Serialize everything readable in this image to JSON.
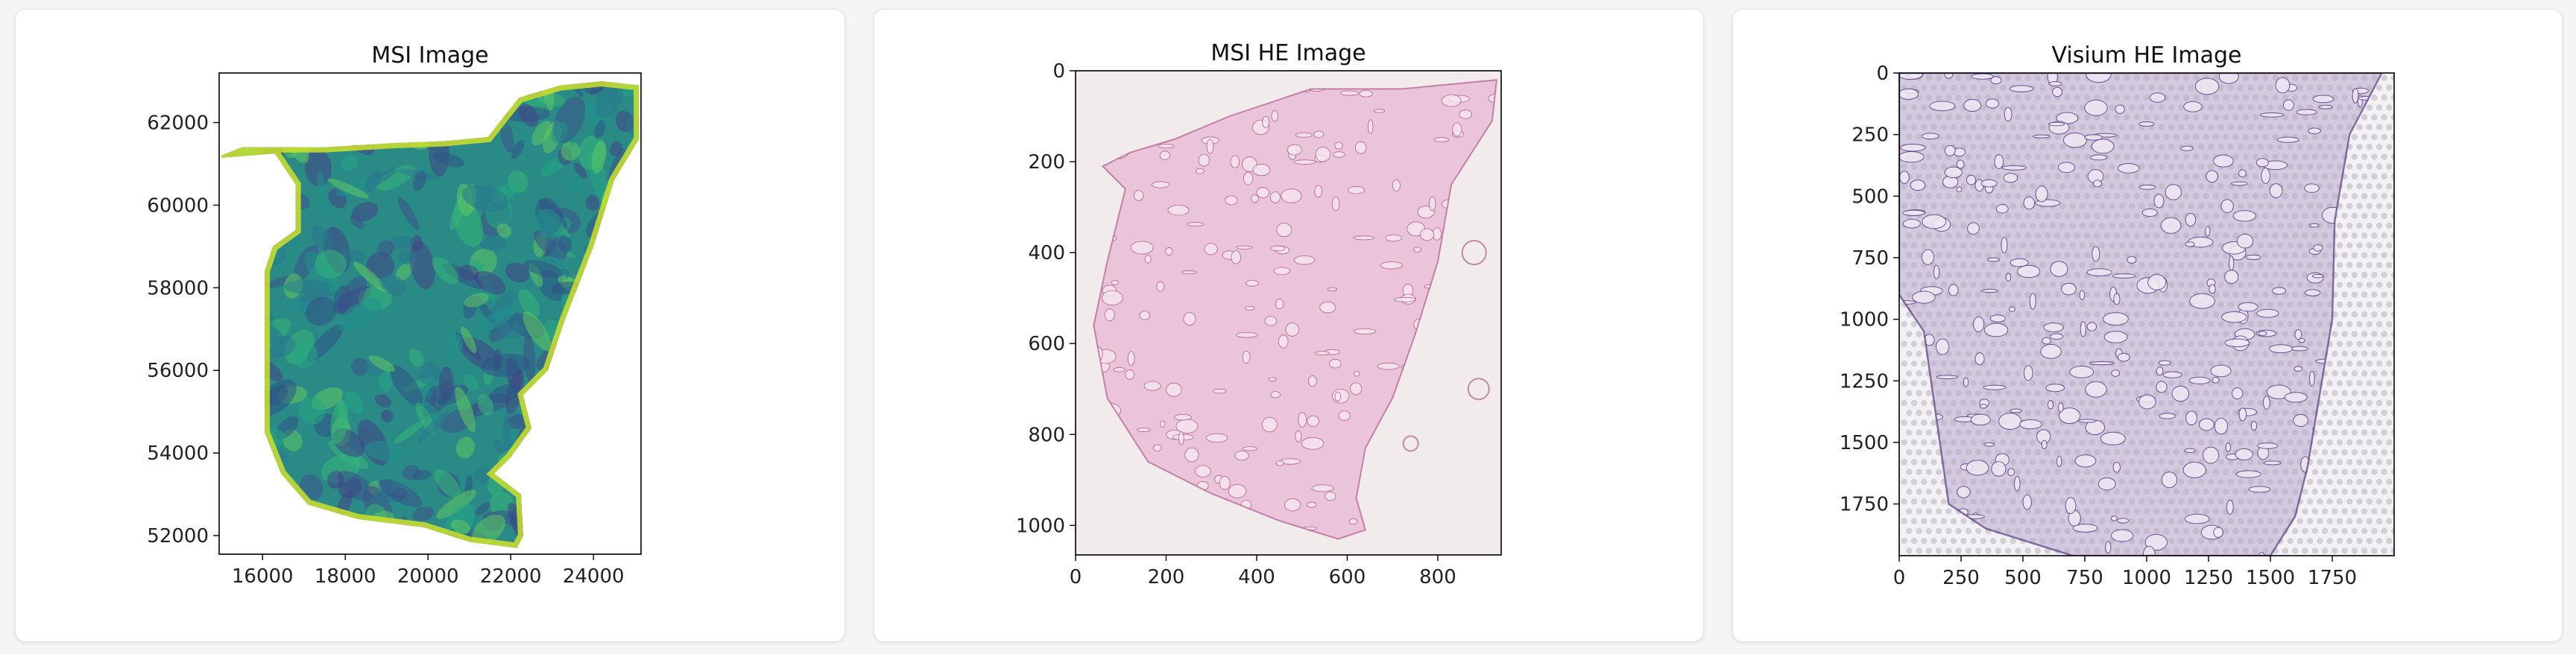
{
  "colors": {
    "card_bg": "#ffffff",
    "page_bg": "#f5f5f5",
    "viridis_dark": "#2f5386",
    "viridis_mid": "#2a8a86",
    "viridis_light": "#cfe02a",
    "he_background": "#f1ebec",
    "he_tissue": "#e7b7d2",
    "he_tissue_dark": "#a8467e",
    "visium_background": "#f4f1f6",
    "visium_tissue": "#b9a9cc",
    "visium_stroke": "#5a3d85",
    "visium_spot": "#b5b5b5"
  },
  "chart_data": [
    {
      "type": "heatmap",
      "title": "MSI Image",
      "xlim": [
        14950,
        25150
      ],
      "ylim": [
        51550,
        63200
      ],
      "x_ticks": [
        16000,
        18000,
        20000,
        22000,
        24000
      ],
      "y_ticks": [
        52000,
        54000,
        56000,
        58000,
        60000,
        62000
      ],
      "x_tick_labels": [
        "16000",
        "18000",
        "20000",
        "22000",
        "24000"
      ],
      "y_tick_labels": [
        "52000",
        "54000",
        "56000",
        "58000",
        "60000",
        "62000"
      ],
      "colormap": "viridis",
      "tissue_outline": [
        [
          15000,
          61150
        ],
        [
          16300,
          61250
        ],
        [
          16800,
          60500
        ],
        [
          16800,
          59400
        ],
        [
          16250,
          59000
        ],
        [
          16050,
          58400
        ],
        [
          16050,
          54500
        ],
        [
          16450,
          53500
        ],
        [
          17100,
          52750
        ],
        [
          18300,
          52400
        ],
        [
          19900,
          52200
        ],
        [
          21000,
          51850
        ],
        [
          22150,
          51700
        ],
        [
          22300,
          52000
        ],
        [
          22250,
          53000
        ],
        [
          21600,
          53500
        ],
        [
          22000,
          53900
        ],
        [
          22500,
          54600
        ],
        [
          22300,
          55400
        ],
        [
          22900,
          56000
        ],
        [
          23300,
          57200
        ],
        [
          24000,
          59000
        ],
        [
          24500,
          60600
        ],
        [
          25100,
          61600
        ],
        [
          25100,
          62900
        ],
        [
          24200,
          63000
        ],
        [
          23200,
          62900
        ],
        [
          22200,
          62600
        ],
        [
          21450,
          61650
        ],
        [
          20400,
          61550
        ],
        [
          19100,
          61500
        ],
        [
          17500,
          61400
        ],
        [
          15500,
          61400
        ],
        [
          15000,
          61200
        ]
      ]
    },
    {
      "type": "image",
      "title": "MSI HE Image",
      "xlim": [
        0,
        940
      ],
      "ylim": [
        1065,
        0
      ],
      "x_ticks": [
        0,
        200,
        400,
        600,
        800
      ],
      "y_ticks": [
        0,
        200,
        400,
        600,
        800,
        1000
      ],
      "x_tick_labels": [
        "0",
        "200",
        "400",
        "600",
        "800"
      ],
      "y_tick_labels": [
        "0",
        "200",
        "400",
        "600",
        "800",
        "1000"
      ],
      "tissue_outline": [
        [
          60,
          210
        ],
        [
          110,
          260
        ],
        [
          70,
          420
        ],
        [
          40,
          560
        ],
        [
          70,
          720
        ],
        [
          160,
          860
        ],
        [
          300,
          930
        ],
        [
          450,
          990
        ],
        [
          580,
          1030
        ],
        [
          640,
          1010
        ],
        [
          620,
          940
        ],
        [
          640,
          830
        ],
        [
          700,
          720
        ],
        [
          750,
          580
        ],
        [
          800,
          420
        ],
        [
          830,
          250
        ],
        [
          920,
          110
        ],
        [
          930,
          20
        ],
        [
          720,
          40
        ],
        [
          520,
          40
        ],
        [
          340,
          100
        ],
        [
          220,
          150
        ],
        [
          120,
          180
        ]
      ]
    },
    {
      "type": "image",
      "title": "Visium HE Image",
      "xlim": [
        0,
        2000
      ],
      "ylim": [
        1960,
        0
      ],
      "x_ticks": [
        0,
        250,
        500,
        750,
        1000,
        1250,
        1500,
        1750
      ],
      "y_ticks": [
        0,
        250,
        500,
        750,
        1000,
        1250,
        1500,
        1750
      ],
      "x_tick_labels": [
        "0",
        "250",
        "500",
        "750",
        "1000",
        "1250",
        "1500",
        "1750"
      ],
      "y_tick_labels": [
        "0",
        "250",
        "500",
        "750",
        "1000",
        "1250",
        "1500",
        "1750"
      ],
      "tissue_outline": [
        [
          0,
          0
        ],
        [
          1950,
          0
        ],
        [
          1820,
          250
        ],
        [
          1760,
          600
        ],
        [
          1750,
          1000
        ],
        [
          1700,
          1300
        ],
        [
          1650,
          1600
        ],
        [
          1600,
          1800
        ],
        [
          1500,
          1960
        ],
        [
          700,
          1960
        ],
        [
          350,
          1850
        ],
        [
          200,
          1750
        ],
        [
          150,
          1400
        ],
        [
          100,
          1050
        ],
        [
          0,
          900
        ]
      ]
    }
  ]
}
